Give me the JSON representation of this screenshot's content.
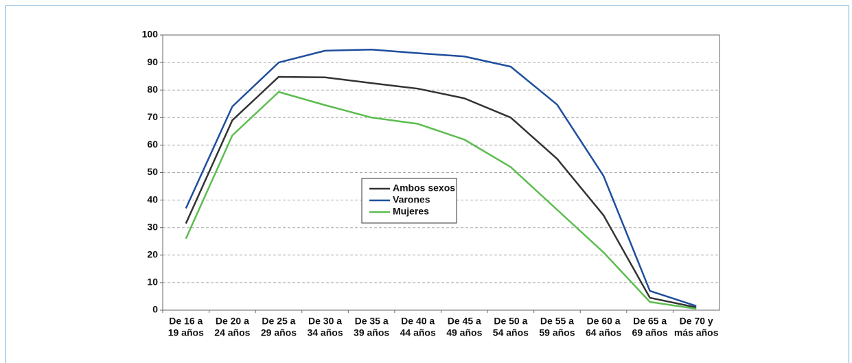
{
  "chart_data": {
    "type": "line",
    "categories": [
      [
        "De 16 a",
        "19 años"
      ],
      [
        "De 20 a",
        "24 años"
      ],
      [
        "De 25 a",
        "29 años"
      ],
      [
        "De 30 a",
        "34 años"
      ],
      [
        "De 35 a",
        "39 años"
      ],
      [
        "De 40 a",
        "44 años"
      ],
      [
        "De 45 a",
        "49 años"
      ],
      [
        "De 50 a",
        "54 años"
      ],
      [
        "De 55 a",
        "59 años"
      ],
      [
        "De 60 a",
        "64 años"
      ],
      [
        "De 65 a",
        "69 años"
      ],
      [
        "De 70 y",
        "más años"
      ]
    ],
    "series": [
      {
        "name": "Ambos sexos",
        "color": "#333333",
        "values": [
          31.5,
          69,
          84.8,
          84.6,
          82.5,
          80.5,
          77,
          70,
          55,
          34.5,
          4.5,
          1
        ]
      },
      {
        "name": "Varones",
        "color": "#1f4e9c",
        "values": [
          37,
          74,
          90,
          94.3,
          94.7,
          93.4,
          92.2,
          88.5,
          74.7,
          48.8,
          7,
          1.5
        ]
      },
      {
        "name": "Mujeres",
        "color": "#5cbd4f",
        "values": [
          26,
          63.5,
          79.3,
          74.5,
          70,
          67.7,
          62,
          52,
          36.5,
          21,
          3,
          0.5
        ]
      }
    ],
    "ylim": [
      0,
      100
    ],
    "yticks": [
      0,
      10,
      20,
      30,
      40,
      50,
      60,
      70,
      80,
      90,
      100
    ],
    "grid": true
  }
}
